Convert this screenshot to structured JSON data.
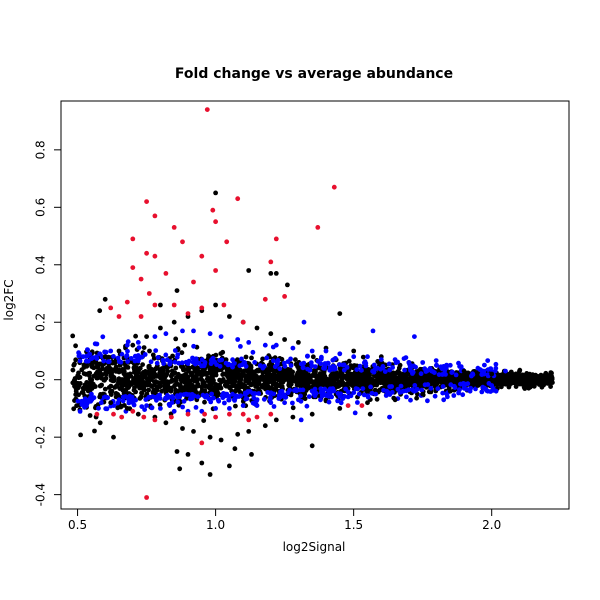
{
  "chart_data": {
    "type": "scatter",
    "title": "Fold change vs average abundance",
    "xlabel": "log2Signal",
    "ylabel": "log2FC",
    "xlim": [
      0.44,
      2.28
    ],
    "ylim": [
      -0.45,
      0.97
    ],
    "x_ticks": [
      0.5,
      1.0,
      1.5,
      2.0
    ],
    "x_tick_labels": [
      "0.5",
      "1.0",
      "1.5",
      "2.0"
    ],
    "y_ticks": [
      -0.4,
      -0.2,
      0.0,
      0.2,
      0.4,
      0.6,
      0.8
    ],
    "y_tick_labels": [
      "-0.4",
      "-0.2",
      "0.0",
      "0.2",
      "0.4",
      "0.6",
      "0.8"
    ],
    "grid": false,
    "legend": "none",
    "colors": {
      "black": "#000000",
      "blue": "#0000ff",
      "red": "#e8102e"
    },
    "series": [
      {
        "color": "black",
        "points": [
          [
            0.5,
            0.01
          ],
          [
            0.52,
            -0.03
          ],
          [
            0.55,
            0.05
          ],
          [
            0.58,
            -0.06
          ],
          [
            0.6,
            0.08
          ],
          [
            0.62,
            -0.08
          ],
          [
            0.65,
            0.1
          ],
          [
            0.68,
            -0.1
          ],
          [
            0.7,
            0.12
          ],
          [
            0.72,
            -0.12
          ],
          [
            0.75,
            0.15
          ],
          [
            0.78,
            -0.13
          ],
          [
            0.8,
            0.18
          ],
          [
            0.82,
            -0.15
          ],
          [
            0.85,
            0.2
          ],
          [
            0.88,
            -0.17
          ],
          [
            0.9,
            0.22
          ],
          [
            0.92,
            -0.18
          ],
          [
            0.95,
            0.24
          ],
          [
            0.98,
            -0.2
          ],
          [
            1.0,
            0.26
          ],
          [
            1.02,
            -0.21
          ],
          [
            1.05,
            0.22
          ],
          [
            1.08,
            -0.19
          ],
          [
            1.1,
            0.2
          ],
          [
            1.12,
            -0.18
          ],
          [
            1.15,
            0.18
          ],
          [
            1.18,
            -0.16
          ],
          [
            1.2,
            0.16
          ],
          [
            1.22,
            -0.14
          ],
          [
            1.25,
            0.14
          ],
          [
            1.28,
            -0.13
          ],
          [
            1.3,
            0.13
          ],
          [
            1.35,
            -0.12
          ],
          [
            1.4,
            0.11
          ],
          [
            1.45,
            -0.1
          ],
          [
            1.5,
            0.1
          ],
          [
            1.55,
            -0.08
          ],
          [
            1.6,
            0.08
          ],
          [
            1.65,
            -0.07
          ],
          [
            1.7,
            0.06
          ],
          [
            1.75,
            -0.05
          ],
          [
            1.8,
            0.05
          ],
          [
            1.85,
            -0.04
          ],
          [
            1.9,
            0.03
          ],
          [
            1.95,
            -0.02
          ],
          [
            2.0,
            0.02
          ],
          [
            2.05,
            -0.01
          ],
          [
            2.1,
            0.01
          ],
          [
            2.15,
            0.0
          ],
          [
            2.2,
            0.0
          ],
          [
            2.22,
            -0.01
          ],
          [
            1.0,
            0.65
          ],
          [
            1.12,
            0.38
          ],
          [
            1.2,
            0.37
          ],
          [
            1.22,
            0.37
          ],
          [
            1.26,
            0.33
          ],
          [
            0.86,
            0.31
          ],
          [
            0.8,
            0.26
          ],
          [
            0.6,
            0.28
          ],
          [
            0.58,
            0.24
          ],
          [
            0.95,
            -0.29
          ],
          [
            0.98,
            -0.33
          ],
          [
            1.05,
            -0.3
          ],
          [
            0.87,
            -0.31
          ],
          [
            0.9,
            -0.26
          ],
          [
            1.13,
            -0.26
          ],
          [
            1.35,
            -0.23
          ],
          [
            0.63,
            -0.2
          ],
          [
            1.45,
            0.23
          ],
          [
            1.56,
            -0.12
          ],
          [
            0.86,
            -0.25
          ],
          [
            1.07,
            -0.24
          ]
        ]
      },
      {
        "color": "blue",
        "points": [
          [
            0.52,
            0.08
          ],
          [
            0.55,
            -0.05
          ],
          [
            0.58,
            0.09
          ],
          [
            0.6,
            -0.06
          ],
          [
            0.62,
            0.1
          ],
          [
            0.65,
            -0.07
          ],
          [
            0.68,
            0.12
          ],
          [
            0.7,
            -0.08
          ],
          [
            0.72,
            0.13
          ],
          [
            0.75,
            -0.09
          ],
          [
            0.78,
            0.15
          ],
          [
            0.8,
            -0.1
          ],
          [
            0.82,
            0.16
          ],
          [
            0.85,
            -0.11
          ],
          [
            0.88,
            0.17
          ],
          [
            0.9,
            -0.11
          ],
          [
            0.92,
            0.17
          ],
          [
            0.95,
            -0.11
          ],
          [
            0.98,
            0.16
          ],
          [
            1.0,
            -0.1
          ],
          [
            1.02,
            0.15
          ],
          [
            1.05,
            -0.1
          ],
          [
            1.08,
            0.14
          ],
          [
            1.1,
            -0.09
          ],
          [
            1.12,
            0.13
          ],
          [
            1.15,
            -0.09
          ],
          [
            1.18,
            0.12
          ],
          [
            1.2,
            -0.08
          ],
          [
            1.22,
            0.12
          ],
          [
            1.25,
            -0.08
          ],
          [
            1.28,
            0.11
          ],
          [
            1.3,
            -0.07
          ],
          [
            1.32,
            0.2
          ],
          [
            1.35,
            0.1
          ],
          [
            1.38,
            -0.07
          ],
          [
            1.4,
            0.1
          ],
          [
            1.42,
            -0.06
          ],
          [
            1.45,
            0.09
          ],
          [
            1.48,
            -0.06
          ],
          [
            1.5,
            0.08
          ],
          [
            1.52,
            -0.05
          ],
          [
            1.55,
            0.08
          ],
          [
            1.58,
            -0.05
          ],
          [
            1.6,
            0.07
          ],
          [
            1.62,
            -0.04
          ],
          [
            1.65,
            0.07
          ],
          [
            1.68,
            -0.04
          ],
          [
            1.7,
            0.06
          ],
          [
            1.72,
            -0.04
          ],
          [
            1.75,
            0.06
          ],
          [
            1.78,
            -0.03
          ],
          [
            1.8,
            0.05
          ],
          [
            1.85,
            0.05
          ],
          [
            1.9,
            -0.03
          ],
          [
            1.95,
            0.04
          ],
          [
            2.0,
            -0.02
          ],
          [
            2.05,
            0.03
          ],
          [
            1.57,
            0.17
          ],
          [
            1.72,
            0.15
          ],
          [
            1.63,
            -0.13
          ],
          [
            1.31,
            -0.14
          ]
        ]
      },
      {
        "color": "red",
        "points": [
          [
            0.97,
            0.94
          ],
          [
            1.43,
            0.67
          ],
          [
            0.75,
            0.62
          ],
          [
            1.08,
            0.63
          ],
          [
            0.99,
            0.59
          ],
          [
            0.78,
            0.57
          ],
          [
            1.0,
            0.55
          ],
          [
            0.85,
            0.53
          ],
          [
            1.37,
            0.53
          ],
          [
            0.7,
            0.49
          ],
          [
            1.04,
            0.48
          ],
          [
            0.88,
            0.48
          ],
          [
            1.22,
            0.49
          ],
          [
            0.75,
            0.44
          ],
          [
            0.78,
            0.43
          ],
          [
            0.95,
            0.43
          ],
          [
            1.2,
            0.41
          ],
          [
            0.7,
            0.39
          ],
          [
            0.82,
            0.37
          ],
          [
            1.0,
            0.38
          ],
          [
            0.73,
            0.35
          ],
          [
            0.92,
            0.34
          ],
          [
            1.25,
            0.29
          ],
          [
            0.76,
            0.3
          ],
          [
            0.68,
            0.27
          ],
          [
            0.78,
            0.26
          ],
          [
            0.85,
            0.26
          ],
          [
            0.95,
            0.25
          ],
          [
            1.03,
            0.26
          ],
          [
            1.18,
            0.28
          ],
          [
            0.62,
            0.25
          ],
          [
            0.65,
            0.22
          ],
          [
            0.73,
            0.22
          ],
          [
            0.9,
            0.23
          ],
          [
            1.1,
            0.2
          ],
          [
            0.57,
            -0.12
          ],
          [
            0.63,
            -0.12
          ],
          [
            0.66,
            -0.13
          ],
          [
            0.7,
            -0.11
          ],
          [
            0.74,
            -0.13
          ],
          [
            0.78,
            -0.14
          ],
          [
            0.84,
            -0.13
          ],
          [
            0.9,
            -0.12
          ],
          [
            0.96,
            -0.12
          ],
          [
            1.0,
            -0.13
          ],
          [
            1.05,
            -0.12
          ],
          [
            1.1,
            -0.12
          ],
          [
            1.12,
            -0.14
          ],
          [
            1.15,
            -0.13
          ],
          [
            0.95,
            -0.22
          ],
          [
            0.75,
            -0.41
          ],
          [
            1.2,
            -0.12
          ],
          [
            1.48,
            -0.09
          ],
          [
            1.53,
            -0.09
          ]
        ]
      }
    ]
  }
}
